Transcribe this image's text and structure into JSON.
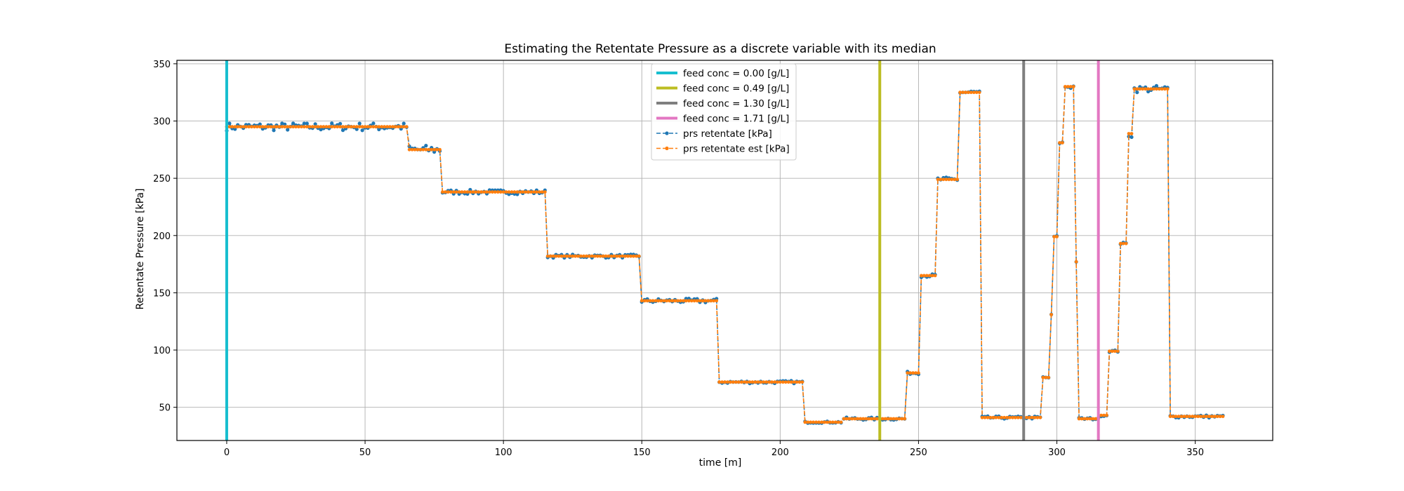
{
  "chart_data": {
    "type": "line",
    "title": "Estimating the Retentate Pressure as a discrete variable with its median",
    "xlabel": "time [m]",
    "ylabel": "Retentate Pressure [kPa]",
    "xlim": [
      -18,
      378
    ],
    "ylim": [
      21,
      353
    ],
    "xticks": [
      0,
      50,
      100,
      150,
      200,
      250,
      300,
      350
    ],
    "yticks": [
      50,
      100,
      150,
      200,
      250,
      300,
      350
    ],
    "grid": true,
    "legend_position": "upper center",
    "vlines": [
      {
        "name": "feed conc = 0.00 [g/L]",
        "x": 0,
        "color": "#17becf"
      },
      {
        "name": "feed conc = 0.49 [g/L]",
        "x": 236,
        "color": "#bcbd22"
      },
      {
        "name": "feed conc = 1.30 [g/L]",
        "x": 288,
        "color": "#7f7f7f"
      },
      {
        "name": "feed conc = 1.71 [g/L]",
        "x": 315,
        "color": "#e377c2"
      }
    ],
    "series_meta": [
      {
        "name": "prs retentate [kPa]",
        "color": "#1f77b4",
        "style": "dashed",
        "marker": "dot"
      },
      {
        "name": "prs retentate est [kPa]",
        "color": "#ff7f0e",
        "style": "dashed",
        "marker": "dot"
      }
    ],
    "segments": [
      {
        "x0": 0,
        "x1": 65,
        "level": 295,
        "jitter": 3.5
      },
      {
        "x0": 66,
        "x1": 77,
        "level": 275,
        "jitter": 4
      },
      {
        "x0": 78,
        "x1": 115,
        "level": 238,
        "jitter": 2
      },
      {
        "x0": 116,
        "x1": 149,
        "level": 182,
        "jitter": 1.5
      },
      {
        "x0": 150,
        "x1": 177,
        "level": 143,
        "jitter": 2
      },
      {
        "x0": 178,
        "x1": 208,
        "level": 72,
        "jitter": 1.2
      },
      {
        "x0": 209,
        "x1": 222,
        "level": 37,
        "jitter": 0.8
      },
      {
        "x0": 223,
        "x1": 245,
        "level": 40,
        "jitter": 1.2
      },
      {
        "x0": 246,
        "x1": 250,
        "level": 80,
        "jitter": 1.2
      },
      {
        "x0": 251,
        "x1": 256,
        "level": 165,
        "jitter": 1.5
      },
      {
        "x0": 257,
        "x1": 264,
        "level": 249,
        "jitter": 2
      },
      {
        "x0": 265,
        "x1": 272,
        "level": 325,
        "jitter": 2
      },
      {
        "x0": 273,
        "x1": 294,
        "level": 41,
        "jitter": 1.2
      },
      {
        "x0": 295,
        "x1": 297,
        "level": 76,
        "jitter": 1
      },
      {
        "x0": 298,
        "x1": 298,
        "level": 131,
        "jitter": 0
      },
      {
        "x0": 299,
        "x1": 300,
        "level": 199,
        "jitter": 1
      },
      {
        "x0": 301,
        "x1": 302,
        "level": 281,
        "jitter": 1
      },
      {
        "x0": 303,
        "x1": 306,
        "level": 330,
        "jitter": 2
      },
      {
        "x0": 307,
        "x1": 307,
        "level": 177,
        "jitter": 0
      },
      {
        "x0": 308,
        "x1": 315,
        "level": 40,
        "jitter": 1
      },
      {
        "x0": 316,
        "x1": 318,
        "level": 43,
        "jitter": 1
      },
      {
        "x0": 319,
        "x1": 322,
        "level": 99,
        "jitter": 1
      },
      {
        "x0": 323,
        "x1": 325,
        "level": 193,
        "jitter": 1
      },
      {
        "x0": 326,
        "x1": 327,
        "level": 289,
        "jitter": 4
      },
      {
        "x0": 328,
        "x1": 340,
        "level": 328,
        "jitter": 3
      },
      {
        "x0": 341,
        "x1": 360,
        "level": 42,
        "jitter": 1.2
      }
    ]
  }
}
